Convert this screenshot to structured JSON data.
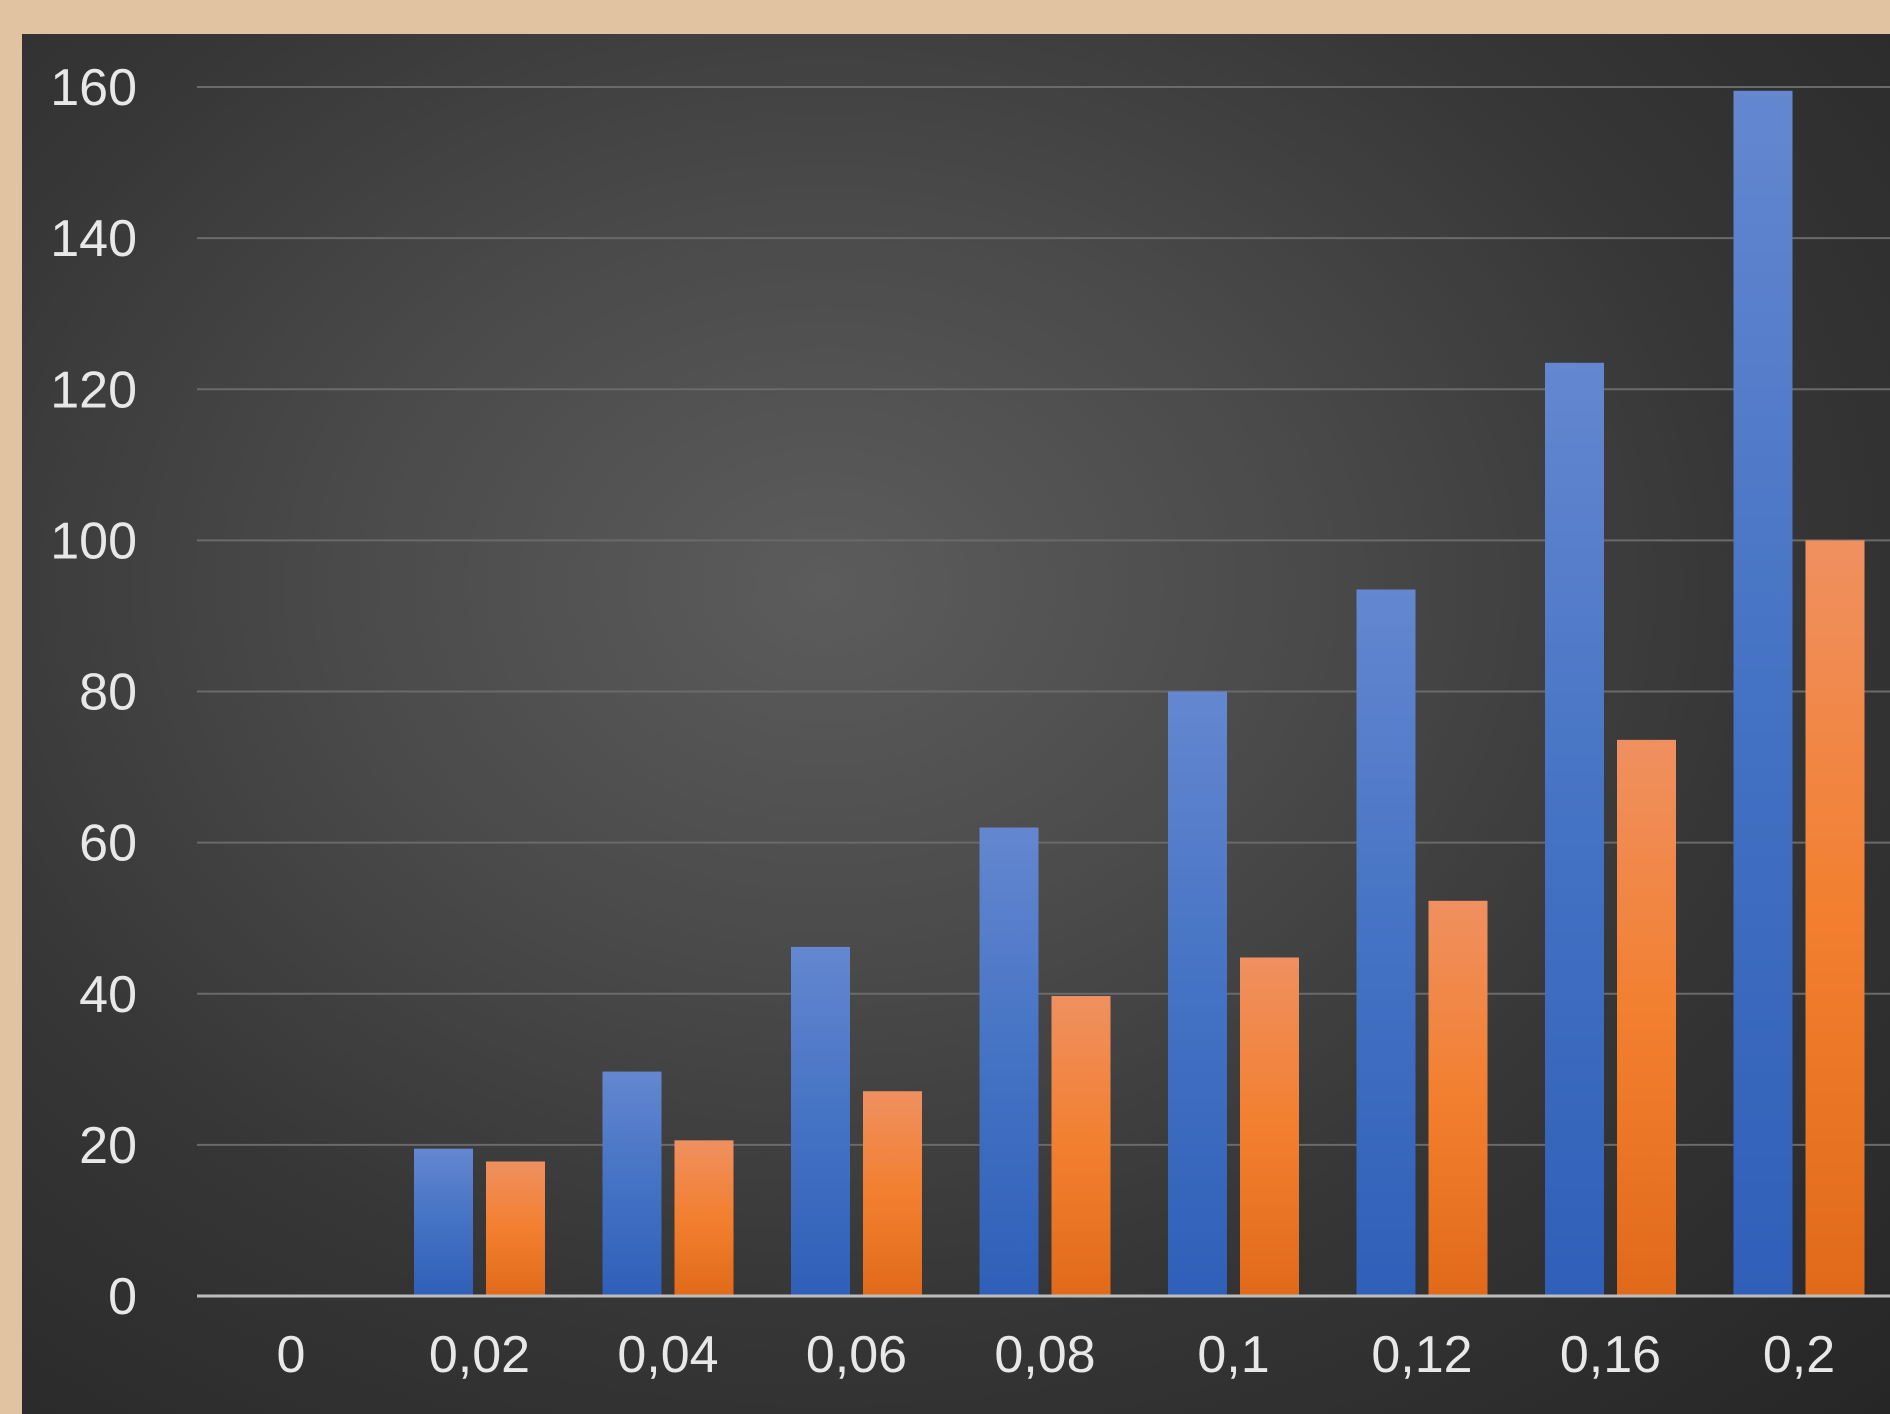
{
  "chart_data": {
    "type": "bar",
    "title": "",
    "xlabel": "",
    "ylabel": "",
    "categories": [
      "0",
      "0,02",
      "0,04",
      "0,06",
      "0,08",
      "0,1",
      "0,12",
      "0,16",
      "0,2"
    ],
    "series": [
      {
        "values": [
          0,
          19.5,
          29.7,
          46.2,
          62,
          80,
          93.5,
          123.5,
          159.5
        ],
        "color": "#4472c4"
      },
      {
        "values": [
          0,
          17.8,
          20.6,
          27.1,
          39.7,
          44.8,
          52.3,
          73.6,
          100
        ],
        "color": "#ed7d31"
      }
    ],
    "ylim": [
      0,
      160
    ],
    "yticks": [
      "0",
      "20",
      "40",
      "60",
      "80",
      "100",
      "120",
      "140",
      "160"
    ],
    "grid": true,
    "legend": "none"
  }
}
